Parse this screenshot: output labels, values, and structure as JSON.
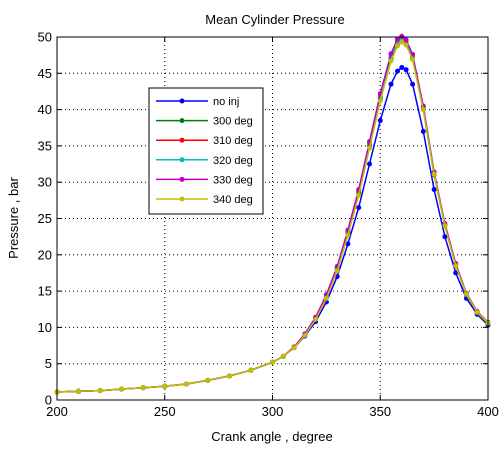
{
  "chart_data": {
    "type": "line",
    "title": "Mean Cylinder Pressure",
    "xlabel": "Crank angle , degree",
    "ylabel": "Pressure , bar",
    "xlim": [
      200,
      400
    ],
    "ylim": [
      0,
      50
    ],
    "xticks": [
      "200",
      "250",
      "300",
      "350",
      "400"
    ],
    "yticks": [
      "0",
      "5",
      "10",
      "15",
      "20",
      "25",
      "30",
      "35",
      "40",
      "45",
      "50"
    ],
    "grid": true,
    "legend_position": "upper-left inside",
    "x": [
      200,
      210,
      220,
      230,
      240,
      250,
      260,
      270,
      280,
      290,
      300,
      305,
      310,
      315,
      320,
      325,
      330,
      335,
      340,
      345,
      350,
      355,
      358,
      360,
      362,
      365,
      370,
      375,
      380,
      385,
      390,
      395,
      400
    ],
    "series": [
      {
        "name": "no inj",
        "color": "#0000ff",
        "values": [
          1.1,
          1.2,
          1.3,
          1.5,
          1.7,
          1.9,
          2.2,
          2.7,
          3.3,
          4.1,
          5.2,
          6.0,
          7.2,
          8.8,
          10.8,
          13.5,
          17.0,
          21.5,
          26.5,
          32.5,
          38.5,
          43.5,
          45.3,
          45.8,
          45.5,
          43.5,
          37.0,
          29.0,
          22.5,
          17.5,
          14.0,
          11.8,
          10.3
        ]
      },
      {
        "name": "300 deg",
        "color": "#008000",
        "values": [
          1.1,
          1.2,
          1.3,
          1.5,
          1.7,
          1.9,
          2.2,
          2.7,
          3.3,
          4.1,
          5.2,
          6.0,
          7.3,
          9.0,
          11.2,
          14.2,
          18.0,
          23.0,
          28.5,
          35.0,
          41.5,
          47.0,
          49.0,
          49.5,
          49.0,
          47.0,
          40.0,
          31.0,
          24.0,
          18.5,
          14.5,
          12.0,
          10.5
        ]
      },
      {
        "name": "310 deg",
        "color": "#ff0000",
        "values": [
          1.1,
          1.2,
          1.3,
          1.5,
          1.7,
          1.9,
          2.2,
          2.7,
          3.3,
          4.1,
          5.2,
          6.0,
          7.3,
          9.0,
          11.3,
          14.3,
          18.2,
          23.2,
          28.8,
          35.3,
          41.8,
          47.3,
          49.4,
          49.9,
          49.4,
          47.3,
          40.2,
          31.2,
          24.1,
          18.6,
          14.6,
          12.1,
          10.6
        ]
      },
      {
        "name": "320 deg",
        "color": "#00bfbf",
        "values": [
          1.1,
          1.2,
          1.3,
          1.5,
          1.7,
          1.9,
          2.2,
          2.7,
          3.3,
          4.1,
          5.2,
          6.0,
          7.3,
          9.0,
          11.3,
          14.3,
          18.2,
          23.2,
          28.8,
          35.3,
          41.8,
          47.3,
          49.3,
          49.8,
          49.3,
          47.3,
          40.2,
          31.2,
          24.1,
          18.6,
          14.6,
          12.1,
          10.6
        ]
      },
      {
        "name": "330 deg",
        "color": "#bf00bf",
        "values": [
          1.1,
          1.2,
          1.3,
          1.5,
          1.7,
          1.9,
          2.2,
          2.7,
          3.3,
          4.1,
          5.2,
          6.0,
          7.3,
          9.1,
          11.4,
          14.5,
          18.4,
          23.4,
          29.0,
          35.6,
          42.2,
          47.7,
          49.7,
          50.1,
          49.6,
          47.6,
          40.5,
          31.4,
          24.3,
          18.8,
          14.7,
          12.2,
          10.7
        ]
      },
      {
        "name": "340 deg",
        "color": "#bfbf00",
        "values": [
          1.1,
          1.2,
          1.3,
          1.5,
          1.7,
          1.9,
          2.2,
          2.7,
          3.3,
          4.1,
          5.2,
          6.0,
          7.2,
          8.9,
          11.1,
          14.0,
          17.8,
          22.7,
          28.2,
          34.7,
          41.2,
          46.7,
          48.8,
          49.3,
          48.9,
          46.9,
          40.0,
          31.1,
          24.0,
          18.5,
          14.6,
          12.1,
          10.6
        ]
      }
    ]
  }
}
